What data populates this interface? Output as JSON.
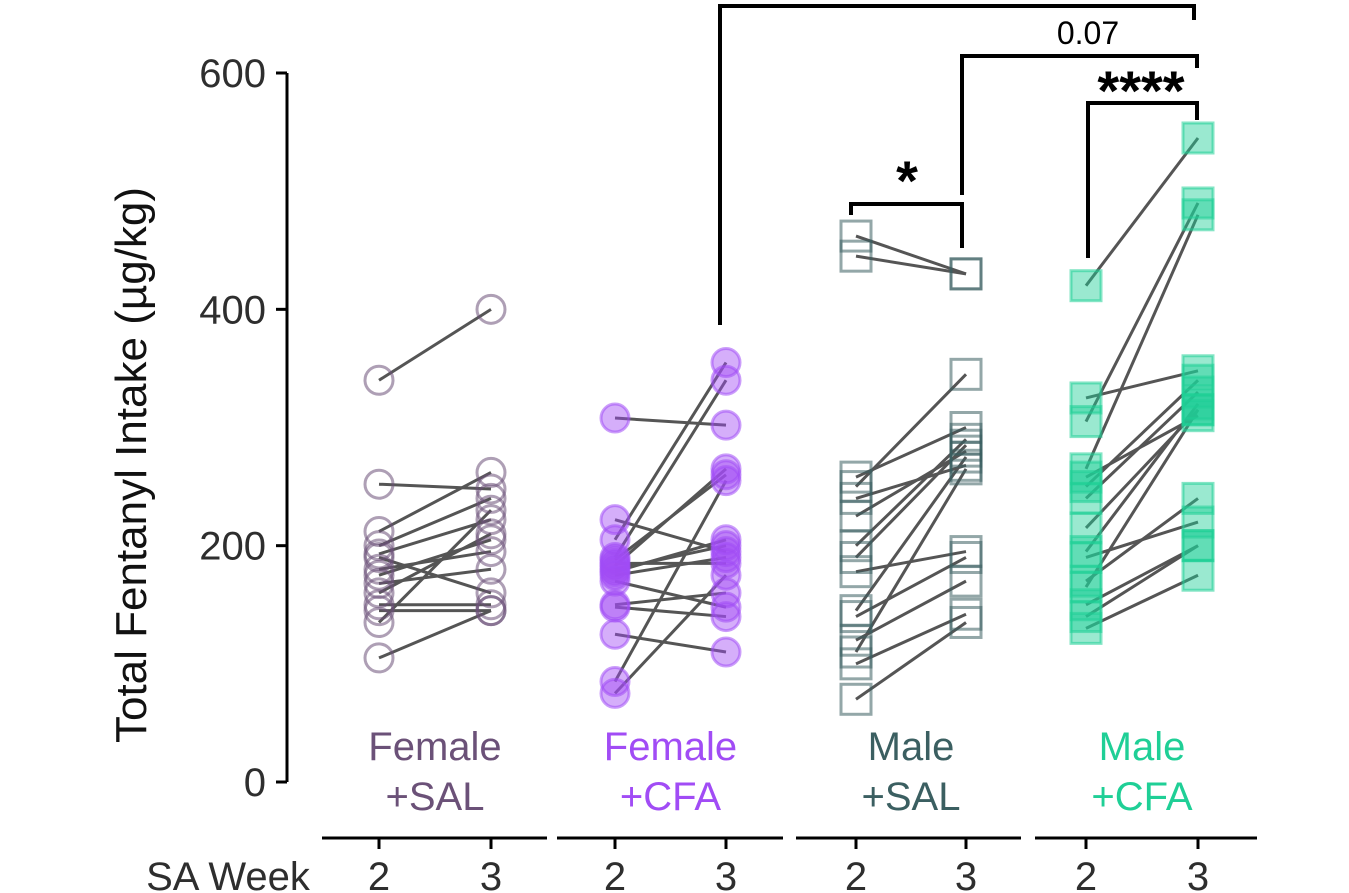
{
  "chart_data": {
    "type": "scatter",
    "subtype": "paired-dot-plot",
    "ylabel": "Total Fentanyl Intake (µg/kg)",
    "ylim": [
      0,
      600
    ],
    "yticks": [
      0,
      200,
      400,
      600
    ],
    "x_axis_title": "SA Week",
    "weeks": [
      "2",
      "3"
    ],
    "groups": [
      {
        "name": "Female +SAL",
        "label_lines": [
          "Female",
          "+SAL"
        ],
        "color": "#6b5178",
        "marker": "circle",
        "filled": false,
        "pairs": [
          [
            340,
            400
          ],
          [
            252,
            248
          ],
          [
            212,
            262
          ],
          [
            200,
            240
          ],
          [
            193,
            222
          ],
          [
            190,
            160
          ],
          [
            180,
            195
          ],
          [
            175,
            205
          ],
          [
            168,
            180
          ],
          [
            160,
            210
          ],
          [
            150,
            150
          ],
          [
            145,
            145
          ],
          [
            135,
            230
          ],
          [
            105,
            145
          ]
        ]
      },
      {
        "name": "Female +CFA",
        "label_lines": [
          "Female",
          "+CFA"
        ],
        "color": "#a14cf5",
        "marker": "circle",
        "filled": true,
        "pairs": [
          [
            308,
            302
          ],
          [
            222,
            195
          ],
          [
            205,
            355
          ],
          [
            190,
            340
          ],
          [
            188,
            260
          ],
          [
            185,
            185
          ],
          [
            183,
            265
          ],
          [
            180,
            200
          ],
          [
            178,
            205
          ],
          [
            175,
            190
          ],
          [
            170,
            148
          ],
          [
            150,
            160
          ],
          [
            148,
            140
          ],
          [
            125,
            110
          ],
          [
            85,
            255
          ],
          [
            75,
            175
          ]
        ]
      },
      {
        "name": "Male +SAL",
        "label_lines": [
          "Male",
          "+SAL"
        ],
        "color": "#3b5f61",
        "marker": "square",
        "filled": false,
        "pairs": [
          [
            462,
            430
          ],
          [
            445,
            430
          ],
          [
            258,
            300
          ],
          [
            250,
            345
          ],
          [
            240,
            268
          ],
          [
            225,
            280
          ],
          [
            200,
            290
          ],
          [
            190,
            285
          ],
          [
            178,
            195
          ],
          [
            145,
            275
          ],
          [
            140,
            190
          ],
          [
            120,
            170
          ],
          [
            110,
            265
          ],
          [
            100,
            142
          ],
          [
            70,
            135
          ]
        ]
      },
      {
        "name": "Male +CFA",
        "label_lines": [
          "Male",
          "+CFA"
        ],
        "color": "#1fcf96",
        "marker": "square",
        "filled": true,
        "pairs": [
          [
            420,
            545
          ],
          [
            325,
            348
          ],
          [
            305,
            490
          ],
          [
            265,
            480
          ],
          [
            258,
            310
          ],
          [
            250,
            340
          ],
          [
            240,
            330
          ],
          [
            215,
            315
          ],
          [
            195,
            320
          ],
          [
            190,
            220
          ],
          [
            170,
            240
          ],
          [
            165,
            315
          ],
          [
            150,
            200
          ],
          [
            140,
            200
          ],
          [
            130,
            175
          ]
        ]
      }
    ],
    "annotations": [
      {
        "label": "*",
        "between": [
          "Male +SAL wk2",
          "Male +SAL wk3"
        ]
      },
      {
        "label": "****",
        "between": [
          "Male +CFA wk2",
          "Male +CFA wk3"
        ]
      },
      {
        "label": "0.07",
        "between": [
          "Male +SAL wk3",
          "Male +CFA wk3"
        ]
      },
      {
        "label": "",
        "between": [
          "Female +CFA wk3",
          "Male +CFA wk3"
        ]
      }
    ]
  }
}
